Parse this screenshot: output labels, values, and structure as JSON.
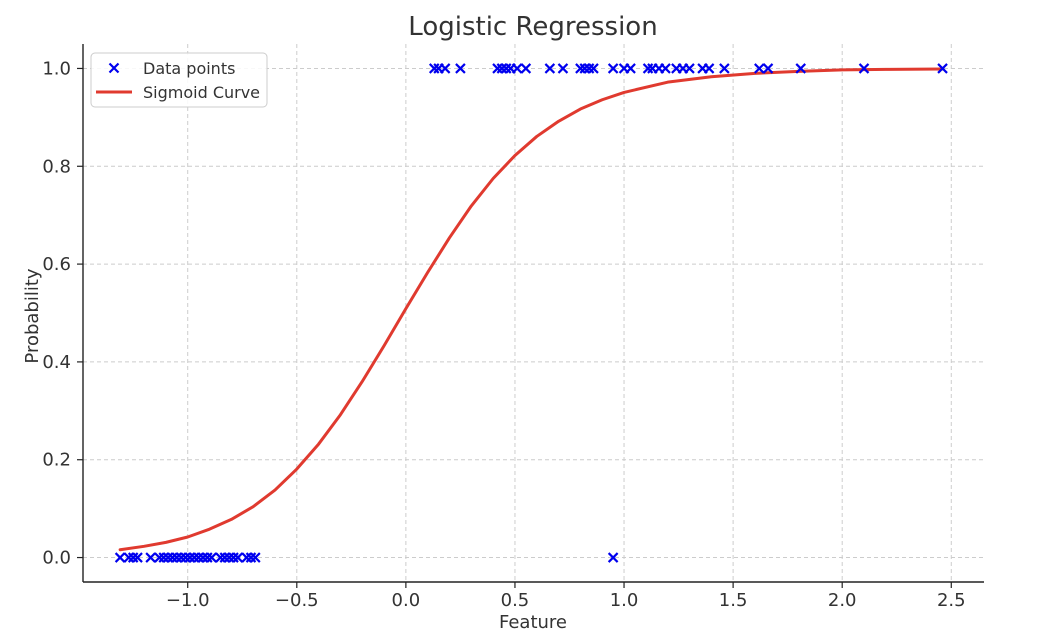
{
  "chart_data": {
    "type": "scatter",
    "title": "Logistic Regression",
    "xlabel": "Feature",
    "ylabel": "Probability",
    "xlim": [
      -1.48,
      2.65
    ],
    "ylim": [
      -0.05,
      1.05
    ],
    "x_ticks": [
      -1.0,
      -0.5,
      0.0,
      0.5,
      1.0,
      1.5,
      2.0,
      2.5
    ],
    "x_tick_labels": [
      "−1.0",
      "−0.5",
      "0.0",
      "0.5",
      "1.0",
      "1.5",
      "2.0",
      "2.5"
    ],
    "y_ticks": [
      0.0,
      0.2,
      0.4,
      0.6,
      0.8,
      1.0
    ],
    "y_tick_labels": [
      "0.0",
      "0.2",
      "0.4",
      "0.6",
      "0.8",
      "1.0"
    ],
    "grid": true,
    "legend_position": "top-left",
    "series": [
      {
        "name": "Data points",
        "type": "scatter",
        "marker": "x",
        "color": "#0000ee",
        "points": [
          [
            -1.31,
            0
          ],
          [
            -1.27,
            0
          ],
          [
            -1.25,
            0
          ],
          [
            -1.23,
            0
          ],
          [
            -1.17,
            0
          ],
          [
            -1.13,
            0
          ],
          [
            -1.11,
            0
          ],
          [
            -1.09,
            0
          ],
          [
            -1.07,
            0
          ],
          [
            -1.05,
            0
          ],
          [
            -1.03,
            0
          ],
          [
            -1.01,
            0
          ],
          [
            -0.99,
            0
          ],
          [
            -0.97,
            0
          ],
          [
            -0.95,
            0
          ],
          [
            -0.93,
            0
          ],
          [
            -0.91,
            0
          ],
          [
            -0.89,
            0
          ],
          [
            -0.85,
            0
          ],
          [
            -0.83,
            0
          ],
          [
            -0.81,
            0
          ],
          [
            -0.79,
            0
          ],
          [
            -0.77,
            0
          ],
          [
            -0.73,
            0
          ],
          [
            -0.71,
            0
          ],
          [
            -0.69,
            0
          ],
          [
            0.95,
            0
          ],
          [
            0.13,
            1
          ],
          [
            0.15,
            1
          ],
          [
            0.18,
            1
          ],
          [
            0.25,
            1
          ],
          [
            0.42,
            1
          ],
          [
            0.44,
            1
          ],
          [
            0.46,
            1
          ],
          [
            0.48,
            1
          ],
          [
            0.51,
            1
          ],
          [
            0.55,
            1
          ],
          [
            0.66,
            1
          ],
          [
            0.72,
            1
          ],
          [
            0.8,
            1
          ],
          [
            0.82,
            1
          ],
          [
            0.84,
            1
          ],
          [
            0.86,
            1
          ],
          [
            0.95,
            1
          ],
          [
            1.0,
            1
          ],
          [
            1.03,
            1
          ],
          [
            1.11,
            1
          ],
          [
            1.13,
            1
          ],
          [
            1.16,
            1
          ],
          [
            1.19,
            1
          ],
          [
            1.24,
            1
          ],
          [
            1.27,
            1
          ],
          [
            1.3,
            1
          ],
          [
            1.36,
            1
          ],
          [
            1.39,
            1
          ],
          [
            1.46,
            1
          ],
          [
            1.62,
            1
          ],
          [
            1.66,
            1
          ],
          [
            1.81,
            1
          ],
          [
            2.1,
            1
          ],
          [
            2.46,
            1
          ]
        ]
      },
      {
        "name": "Sigmoid Curve",
        "type": "line",
        "color": "#e03a2f",
        "x": [
          -1.31,
          -1.2,
          -1.1,
          -1.0,
          -0.9,
          -0.8,
          -0.7,
          -0.6,
          -0.5,
          -0.4,
          -0.3,
          -0.2,
          -0.1,
          0.0,
          0.1,
          0.2,
          0.3,
          0.4,
          0.5,
          0.6,
          0.7,
          0.8,
          0.9,
          1.0,
          1.2,
          1.4,
          1.6,
          1.8,
          2.0,
          2.2,
          2.46
        ],
        "y": [
          0.016,
          0.023,
          0.031,
          0.042,
          0.058,
          0.078,
          0.104,
          0.138,
          0.181,
          0.232,
          0.292,
          0.36,
          0.433,
          0.509,
          0.583,
          0.654,
          0.719,
          0.775,
          0.822,
          0.861,
          0.892,
          0.917,
          0.936,
          0.951,
          0.972,
          0.983,
          0.99,
          0.994,
          0.997,
          0.998,
          0.999
        ]
      }
    ]
  }
}
